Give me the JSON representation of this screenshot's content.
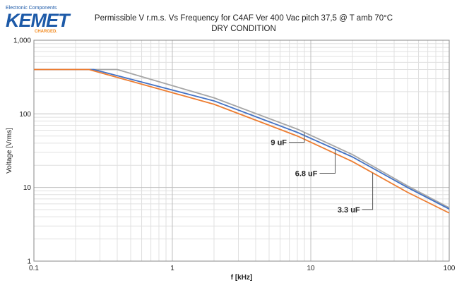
{
  "logo": {
    "tagline": "Electronic Components",
    "wordmark": "KEMET",
    "slogan": "CHARGED."
  },
  "chart_data": {
    "type": "line",
    "title": "Permissible V r.m.s. Vs Frequency  for C4AF Ver 400 Vac pitch 37,5 @ T amb 70°C",
    "subtitle": "DRY CONDITION",
    "xlabel": "f [kHz]",
    "ylabel": "Voltage [Vrms]",
    "xscale": "log",
    "yscale": "log",
    "xlim": [
      0.1,
      100
    ],
    "ylim": [
      1,
      1000
    ],
    "x_ticks": [
      "0.1",
      "1",
      "10",
      "100"
    ],
    "y_ticks": [
      "1",
      "10",
      "100",
      "1,000"
    ],
    "grid": true,
    "series": [
      {
        "name": "9 uF",
        "color": "#a6a6a6",
        "points": [
          [
            0.1,
            400
          ],
          [
            0.4,
            400
          ],
          [
            2,
            165
          ],
          [
            8,
            62
          ],
          [
            20,
            28
          ],
          [
            50,
            10.5
          ],
          [
            100,
            5.3
          ]
        ]
      },
      {
        "name": "6.8 uF",
        "color": "#4472c4",
        "points": [
          [
            0.1,
            400
          ],
          [
            0.27,
            400
          ],
          [
            2,
            150
          ],
          [
            8,
            56
          ],
          [
            20,
            26
          ],
          [
            50,
            10
          ],
          [
            100,
            5.1
          ]
        ]
      },
      {
        "name": "3.3 uF",
        "color": "#ed7d31",
        "points": [
          [
            0.1,
            400
          ],
          [
            0.25,
            400
          ],
          [
            2,
            135
          ],
          [
            8,
            50
          ],
          [
            20,
            22.5
          ],
          [
            50,
            8.6
          ],
          [
            100,
            4.5
          ]
        ]
      }
    ],
    "annotations": [
      {
        "text": "9 uF",
        "series": 0,
        "at_x": 9
      },
      {
        "text": "6.8 uF",
        "series": 1,
        "at_x": 15
      },
      {
        "text": "3.3 uF",
        "series": 2,
        "at_x": 28
      }
    ]
  }
}
